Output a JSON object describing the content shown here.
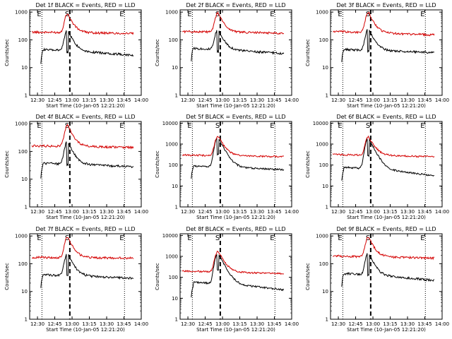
{
  "colors": {
    "events": "#000000",
    "lld": "#d40000",
    "dotted": "#000000",
    "dashed": "#000000"
  },
  "chart_data": [
    {
      "type": "line",
      "title": "Det 1f BLACK = Events, RED = LLD",
      "xlabel": "Start Time (10-Jan-05 12:21:20)",
      "ylabel": "Counts/sec",
      "xticks": [
        "12:30",
        "12:45",
        "13:00",
        "13:15",
        "13:30",
        "13:45",
        "14:00"
      ],
      "yticks": [
        "1",
        "10",
        "100",
        "1000"
      ],
      "ylim": [
        1,
        1200
      ],
      "log_y": true,
      "markers": [
        "E",
        "S",
        "E"
      ],
      "series": [
        {
          "color": "black",
          "base": 50,
          "pre": 45,
          "peak": 240,
          "ends": 28
        },
        {
          "color": "red",
          "base": 220,
          "pre": 190,
          "peak": 900,
          "ends": 170
        }
      ]
    },
    {
      "type": "line",
      "title": "Det 2f BLACK = Events, RED = LLD",
      "xlabel": "Start Time (10-Jan-05 12:21:20)",
      "ylabel": "Counts/sec",
      "xticks": [
        "12:30",
        "12:45",
        "13:00",
        "13:15",
        "13:30",
        "13:45",
        "14:00"
      ],
      "yticks": [
        "1",
        "10",
        "100",
        "1000"
      ],
      "ylim": [
        1,
        1200
      ],
      "log_y": true,
      "markers": [
        "E",
        "S",
        "E"
      ],
      "series": [
        {
          "color": "black",
          "base": 60,
          "pre": 50,
          "peak": 250,
          "ends": 32
        },
        {
          "color": "red",
          "base": 230,
          "pre": 200,
          "peak": 950,
          "ends": 175
        }
      ]
    },
    {
      "type": "line",
      "title": "Det 3f BLACK = Events, RED = LLD",
      "xlabel": "Start Time (10-Jan-05 12:21:20)",
      "ylabel": "Counts/sec",
      "xticks": [
        "12:30",
        "12:45",
        "13:00",
        "13:15",
        "13:30",
        "13:45",
        "14:00"
      ],
      "yticks": [
        "1",
        "10",
        "100",
        "1000"
      ],
      "ylim": [
        1,
        1200
      ],
      "log_y": true,
      "markers": [
        "E",
        "S",
        "E"
      ],
      "series": [
        {
          "color": "black",
          "base": 50,
          "pre": 45,
          "peak": 260,
          "ends": 35
        },
        {
          "color": "red",
          "base": 220,
          "pre": 200,
          "peak": 1000,
          "ends": 150
        }
      ]
    },
    {
      "type": "line",
      "title": "Det 4f BLACK = Events, RED = LLD",
      "xlabel": "Start Time (10-Jan-05 12:21:20)",
      "ylabel": "Counts/sec",
      "xticks": [
        "12:30",
        "12:45",
        "13:00",
        "13:15",
        "13:30",
        "13:45",
        "14:00"
      ],
      "yticks": [
        "1",
        "10",
        "100",
        "1000"
      ],
      "ylim": [
        1,
        1200
      ],
      "log_y": true,
      "markers": [
        "E",
        "S",
        "E"
      ],
      "series": [
        {
          "color": "black",
          "base": 35,
          "pre": 38,
          "peak": 240,
          "ends": 28
        },
        {
          "color": "red",
          "base": 180,
          "pre": 160,
          "peak": 900,
          "ends": 140
        }
      ]
    },
    {
      "type": "line",
      "title": "Det 5f BLACK = Events, RED = LLD",
      "xlabel": "Start Time (10-Jan-05 12:21:20)",
      "ylabel": "Counts/sec",
      "xticks": [
        "12:30",
        "12:45",
        "13:00",
        "13:15",
        "13:30",
        "13:45",
        "14:00"
      ],
      "yticks": [
        "1",
        "10",
        "100",
        "1000",
        "10000"
      ],
      "ylim": [
        1,
        12000
      ],
      "log_y": true,
      "markers": [
        "E",
        "S",
        "E"
      ],
      "series": [
        {
          "color": "black",
          "base": 80,
          "pre": 90,
          "peak": 2200,
          "ends": 60
        },
        {
          "color": "red",
          "base": 280,
          "pre": 300,
          "peak": 2500,
          "ends": 250
        }
      ]
    },
    {
      "type": "line",
      "title": "Det 6f BLACK = Events, RED = LLD",
      "xlabel": "Start Time (10-Jan-05 12:21:20)",
      "ylabel": "Counts/sec",
      "xticks": [
        "12:30",
        "12:45",
        "13:00",
        "13:15",
        "13:30",
        "13:45",
        "14:00"
      ],
      "yticks": [
        "1",
        "10",
        "100",
        "1000",
        "10000"
      ],
      "ylim": [
        1,
        12000
      ],
      "log_y": true,
      "markers": [
        "E",
        "S",
        "E"
      ],
      "series": [
        {
          "color": "black",
          "base": 60,
          "pre": 80,
          "peak": 2000,
          "ends": 30
        },
        {
          "color": "red",
          "base": 300,
          "pre": 320,
          "peak": 2300,
          "ends": 250
        }
      ]
    },
    {
      "type": "line",
      "title": "Det 7f BLACK = Events, RED = LLD",
      "xlabel": "Start Time (10-Jan-05 12:21:20)",
      "ylabel": "Counts/sec",
      "xticks": [
        "12:30",
        "12:45",
        "13:00",
        "13:15",
        "13:30",
        "13:45",
        "14:00"
      ],
      "yticks": [
        "1",
        "10",
        "100",
        "1000"
      ],
      "ylim": [
        1,
        1200
      ],
      "log_y": true,
      "markers": [
        "E",
        "S",
        "E"
      ],
      "series": [
        {
          "color": "black",
          "base": 45,
          "pre": 40,
          "peak": 250,
          "ends": 30
        },
        {
          "color": "red",
          "base": 190,
          "pre": 170,
          "peak": 950,
          "ends": 160
        }
      ]
    },
    {
      "type": "line",
      "title": "Det 8f BLACK = Events, RED = LLD",
      "xlabel": "Start Time (10-Jan-05 12:21:20)",
      "ylabel": "Counts/sec",
      "xticks": [
        "12:30",
        "12:45",
        "13:00",
        "13:15",
        "13:30",
        "13:45",
        "14:00"
      ],
      "yticks": [
        "1",
        "10",
        "100",
        "1000",
        "10000"
      ],
      "ylim": [
        1,
        12000
      ],
      "log_y": true,
      "markers": [
        "E",
        "S",
        "E"
      ],
      "series": [
        {
          "color": "black",
          "base": 40,
          "pre": 60,
          "peak": 1500,
          "ends": 25
        },
        {
          "color": "red",
          "base": 170,
          "pre": 200,
          "peak": 1800,
          "ends": 150
        }
      ]
    },
    {
      "type": "line",
      "title": "Det 9f BLACK = Events, RED = LLD",
      "xlabel": "Start Time (10-Jan-05 12:21:20)",
      "ylabel": "Counts/sec",
      "xticks": [
        "12:30",
        "12:45",
        "13:00",
        "13:15",
        "13:30",
        "13:45",
        "14:00"
      ],
      "yticks": [
        "1",
        "10",
        "100",
        "1000"
      ],
      "ylim": [
        1,
        1200
      ],
      "log_y": true,
      "markers": [
        "E",
        "S",
        "E"
      ],
      "series": [
        {
          "color": "black",
          "base": 50,
          "pre": 45,
          "peak": 260,
          "ends": 25
        },
        {
          "color": "red",
          "base": 210,
          "pre": 190,
          "peak": 950,
          "ends": 160
        }
      ]
    }
  ]
}
